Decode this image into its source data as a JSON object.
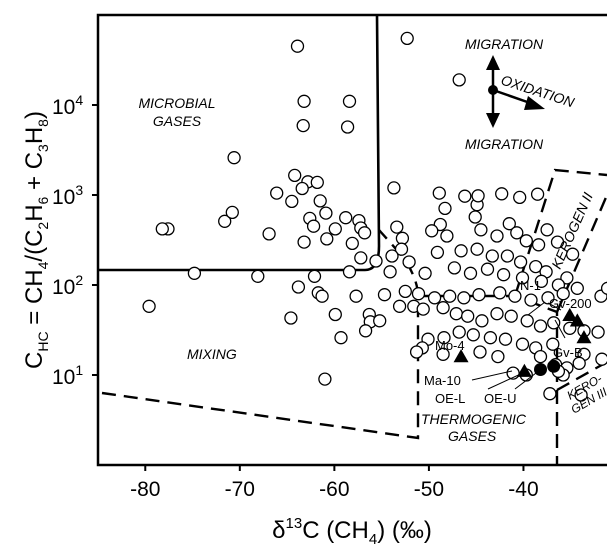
{
  "chart_data": {
    "type": "scatter",
    "xlabel_prefix": "δ",
    "xlabel_sup": "13",
    "xlabel_main": "C (CH",
    "xlabel_sub": "4",
    "xlabel_suffix": ") (‰)",
    "ylabel_c": "C",
    "ylabel_hc": "HC",
    "ylabel_eq": " = CH",
    "ylabel_sub1": "4",
    "ylabel_mid": "/(C",
    "ylabel_sub2": "2",
    "ylabel_h6": "H",
    "ylabel_sub3": "6",
    "ylabel_plus": " + C",
    "ylabel_sub4": "3",
    "ylabel_h8": "H",
    "ylabel_sub5": "8",
    "ylabel_close": ")",
    "xlim": [
      -85,
      -30
    ],
    "ylim": [
      1,
      100000
    ],
    "yscale": "log",
    "x_ticks": [
      -80,
      -70,
      -60,
      -50,
      -40
    ],
    "y_ticks": [
      {
        "value": 10,
        "base": "10",
        "exp": "1"
      },
      {
        "value": 100,
        "base": "10",
        "exp": "2"
      },
      {
        "value": 1000,
        "base": "10",
        "exp": "3"
      },
      {
        "value": 10000,
        "base": "10",
        "exp": "4"
      }
    ],
    "region_labels": {
      "microbial_1": "MICROBIAL",
      "microbial_2": "GASES",
      "mixing": "MIXING",
      "thermogenic_1": "THERMOGENIC",
      "thermogenic_2": "GASES",
      "kerogen_ii": "KEROGEN II",
      "kerogen_iii_1": "KERO-",
      "kerogen_iii_2": "GEN III",
      "migration_top": "MIGRATION",
      "migration_bottom": "MIGRATION",
      "oxidation": "OXIDATION"
    },
    "open_circles": [
      [
        -63.9,
        45000
      ],
      [
        -52.3,
        55000
      ],
      [
        -46.8,
        19000
      ],
      [
        -63.2,
        11000
      ],
      [
        -58.4,
        11000
      ],
      [
        -63.3,
        5900
      ],
      [
        -58.6,
        5700
      ],
      [
        -70.6,
        2600
      ],
      [
        -64.2,
        1650
      ],
      [
        -62.8,
        1400
      ],
      [
        -61.8,
        1380
      ],
      [
        -63.4,
        1180
      ],
      [
        -53.7,
        1200
      ],
      [
        -66.1,
        1050
      ],
      [
        -64.5,
        850
      ],
      [
        -61.5,
        860
      ],
      [
        -60.9,
        630
      ],
      [
        -62.6,
        550
      ],
      [
        -58.8,
        560
      ],
      [
        -62.2,
        450
      ],
      [
        -59.9,
        420
      ],
      [
        -57.4,
        520
      ],
      [
        -57.2,
        430
      ],
      [
        -56.8,
        380
      ],
      [
        -48.9,
        1050
      ],
      [
        -46.2,
        970
      ],
      [
        -44.9,
        780
      ],
      [
        -44.8,
        980
      ],
      [
        -42.3,
        1030
      ],
      [
        -40.4,
        940
      ],
      [
        -48.3,
        710
      ],
      [
        -45.1,
        570
      ],
      [
        -38.5,
        1020
      ],
      [
        -48.8,
        470
      ],
      [
        -41.5,
        480
      ],
      [
        -77.6,
        420
      ],
      [
        -78.2,
        420
      ],
      [
        -71.6,
        510
      ],
      [
        -70.8,
        640
      ],
      [
        -66.9,
        370
      ],
      [
        -63.2,
        300
      ],
      [
        -60.8,
        325
      ],
      [
        -58.1,
        290
      ],
      [
        -53.4,
        440
      ],
      [
        -52.8,
        330
      ],
      [
        -52.9,
        250
      ],
      [
        -53.9,
        210
      ],
      [
        -52.1,
        180
      ],
      [
        -49.7,
        400
      ],
      [
        -48.1,
        350
      ],
      [
        -44.5,
        410
      ],
      [
        -42.8,
        350
      ],
      [
        -40.7,
        380
      ],
      [
        -39.7,
        310
      ],
      [
        -37.5,
        410
      ],
      [
        -38.4,
        280
      ],
      [
        -36.4,
        300
      ],
      [
        -34.8,
        220
      ],
      [
        -57.2,
        200
      ],
      [
        -55.6,
        185
      ],
      [
        -49.1,
        230
      ],
      [
        -46.6,
        240
      ],
      [
        -44.9,
        250
      ],
      [
        -43.3,
        210
      ],
      [
        -41.7,
        210
      ],
      [
        -40.3,
        180
      ],
      [
        -38.7,
        160
      ],
      [
        -37.6,
        140
      ],
      [
        -35.4,
        120
      ],
      [
        -74.8,
        135
      ],
      [
        -68.1,
        125
      ],
      [
        -62.1,
        125
      ],
      [
        -58.4,
        140
      ],
      [
        -54.1,
        140
      ],
      [
        -50.4,
        135
      ],
      [
        -47.3,
        155
      ],
      [
        -45.6,
        135
      ],
      [
        -43.8,
        150
      ],
      [
        -42.1,
        130
      ],
      [
        -40.1,
        120
      ],
      [
        -38.1,
        110
      ],
      [
        -36.3,
        100
      ],
      [
        -34.3,
        92
      ],
      [
        -79.6,
        58
      ],
      [
        -63.8,
        95
      ],
      [
        -61.7,
        82
      ],
      [
        -61.3,
        75
      ],
      [
        -57.7,
        75
      ],
      [
        -54.7,
        78
      ],
      [
        -52.5,
        85
      ],
      [
        -51.1,
        80
      ],
      [
        -49.4,
        72
      ],
      [
        -47.8,
        75
      ],
      [
        -46.3,
        72
      ],
      [
        -44.7,
        78
      ],
      [
        -42.5,
        82
      ],
      [
        -40.9,
        75
      ],
      [
        -39.2,
        68
      ],
      [
        -37.4,
        72
      ],
      [
        -35.8,
        80
      ],
      [
        -64.6,
        43
      ],
      [
        -59.9,
        47
      ],
      [
        -56.3,
        47
      ],
      [
        -56.2,
        39
      ],
      [
        -56.7,
        31
      ],
      [
        -55.2,
        40
      ],
      [
        -53.1,
        58
      ],
      [
        -51.6,
        58
      ],
      [
        -50.6,
        54
      ],
      [
        -48.5,
        56
      ],
      [
        -47.1,
        48
      ],
      [
        -45.9,
        45
      ],
      [
        -44.4,
        40
      ],
      [
        -42.8,
        48
      ],
      [
        -41.3,
        45
      ],
      [
        -39.6,
        40
      ],
      [
        -38.2,
        35
      ],
      [
        -36.8,
        38
      ],
      [
        -35.1,
        33
      ],
      [
        -33.6,
        31
      ],
      [
        -59.3,
        26
      ],
      [
        -50.1,
        25
      ],
      [
        -48.4,
        26
      ],
      [
        -46.8,
        30
      ],
      [
        -45.3,
        28
      ],
      [
        -43.5,
        26
      ],
      [
        -41.9,
        25
      ],
      [
        -40.1,
        22
      ],
      [
        -38.7,
        20
      ],
      [
        -36.9,
        22
      ],
      [
        -50.7,
        20
      ],
      [
        -51.3,
        18
      ],
      [
        -48.5,
        17
      ],
      [
        -44.6,
        18
      ],
      [
        -42.7,
        16
      ],
      [
        -38.2,
        16
      ],
      [
        -36.6,
        13
      ],
      [
        -35.4,
        12
      ],
      [
        -61,
        9
      ],
      [
        -41.1,
        10.5
      ],
      [
        -39.7,
        10
      ],
      [
        -35.8,
        10
      ],
      [
        -36.3,
        11
      ],
      [
        -37.2,
        6.2
      ],
      [
        -33.9,
        6
      ],
      [
        -33.6,
        17
      ],
      [
        -32.1,
        30
      ],
      [
        -31.7,
        15
      ],
      [
        -31.8,
        75
      ],
      [
        -31.1,
        92
      ],
      [
        -34.1,
        13.5
      ],
      [
        -30.2,
        15
      ]
    ],
    "filled_triangles": [
      {
        "x": -46.6,
        "y": 16,
        "label": "Mo-4"
      },
      {
        "x": -39.9,
        "y": 11,
        "label": "Ma-10"
      },
      {
        "x": -35.1,
        "y": 46,
        "label": "N-1"
      },
      {
        "x": -33.6,
        "y": 26,
        "label": "Gv-B"
      },
      {
        "x": -34.3,
        "y": 40,
        "label": "Gv-200"
      }
    ],
    "filled_circles": [
      {
        "x": -38.2,
        "y": 11.5,
        "label": "OE-L"
      },
      {
        "x": -36.8,
        "y": 12.5,
        "label": "OE-U"
      }
    ]
  },
  "colors": {
    "ink": "#000000",
    "marker_fill": "#ffffff"
  }
}
